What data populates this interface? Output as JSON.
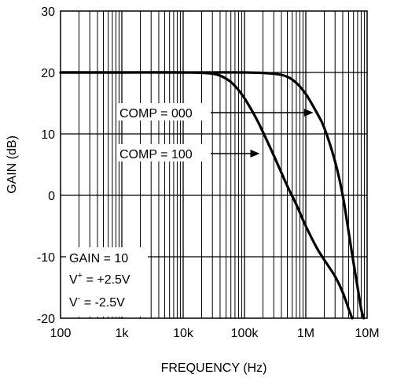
{
  "chart_data": {
    "type": "line",
    "xlabel": "FREQUENCY (Hz)",
    "ylabel": "GAIN (dB)",
    "xscale": "log",
    "xlim": [
      100,
      10000000
    ],
    "ylim": [
      -20,
      30
    ],
    "grid": true,
    "x_ticks": [
      {
        "value": 100,
        "label": "100"
      },
      {
        "value": 1000,
        "label": "1k"
      },
      {
        "value": 10000,
        "label": "10k"
      },
      {
        "value": 100000,
        "label": "100k"
      },
      {
        "value": 1000000,
        "label": "1M"
      },
      {
        "value": 10000000,
        "label": "10M"
      }
    ],
    "y_ticks": [
      {
        "value": 30,
        "label": "30"
      },
      {
        "value": 20,
        "label": "20"
      },
      {
        "value": 10,
        "label": "10"
      },
      {
        "value": 0,
        "label": "0"
      },
      {
        "value": -10,
        "label": "-10"
      },
      {
        "value": -20,
        "label": "-20"
      }
    ],
    "series": [
      {
        "name": "COMP = 000",
        "color": "#000000",
        "x": [
          100,
          1000,
          10000,
          100000,
          300000,
          500000,
          700000,
          1000000,
          1500000,
          2000000,
          3000000,
          4000000,
          5000000,
          6000000,
          7000000,
          8000000,
          8800000
        ],
        "y": [
          20,
          20,
          20,
          20,
          19.8,
          19.3,
          18.3,
          16.5,
          13.5,
          11,
          5.5,
          0,
          -6,
          -11,
          -15,
          -18.5,
          -20
        ]
      },
      {
        "name": "COMP = 100",
        "color": "#000000",
        "x": [
          100,
          1000,
          10000,
          30000,
          50000,
          70000,
          100000,
          150000,
          200000,
          300000,
          500000,
          700000,
          1000000,
          1500000,
          2000000,
          3000000,
          4000000,
          5000000,
          5700000
        ],
        "y": [
          20,
          20,
          20,
          19.8,
          19,
          17.8,
          15.8,
          12.8,
          10.3,
          6.5,
          1.5,
          -1.5,
          -5,
          -8.5,
          -10.5,
          -13.2,
          -15.8,
          -18.5,
          -20
        ]
      }
    ],
    "annotations": [
      {
        "text": "COMP = 000",
        "arrow_to": [
          1500000,
          13.5
        ]
      },
      {
        "text": "COMP = 100",
        "arrow_to": [
          200000,
          10.3
        ]
      }
    ],
    "conditions": {
      "gain": "GAIN = 10",
      "vplus_prefix": "V",
      "vplus_sup": "+",
      "vplus_value": " = +2.5V",
      "vminus_prefix": "V",
      "vminus_sup": "-",
      "vminus_value": " = -2.5V"
    }
  }
}
